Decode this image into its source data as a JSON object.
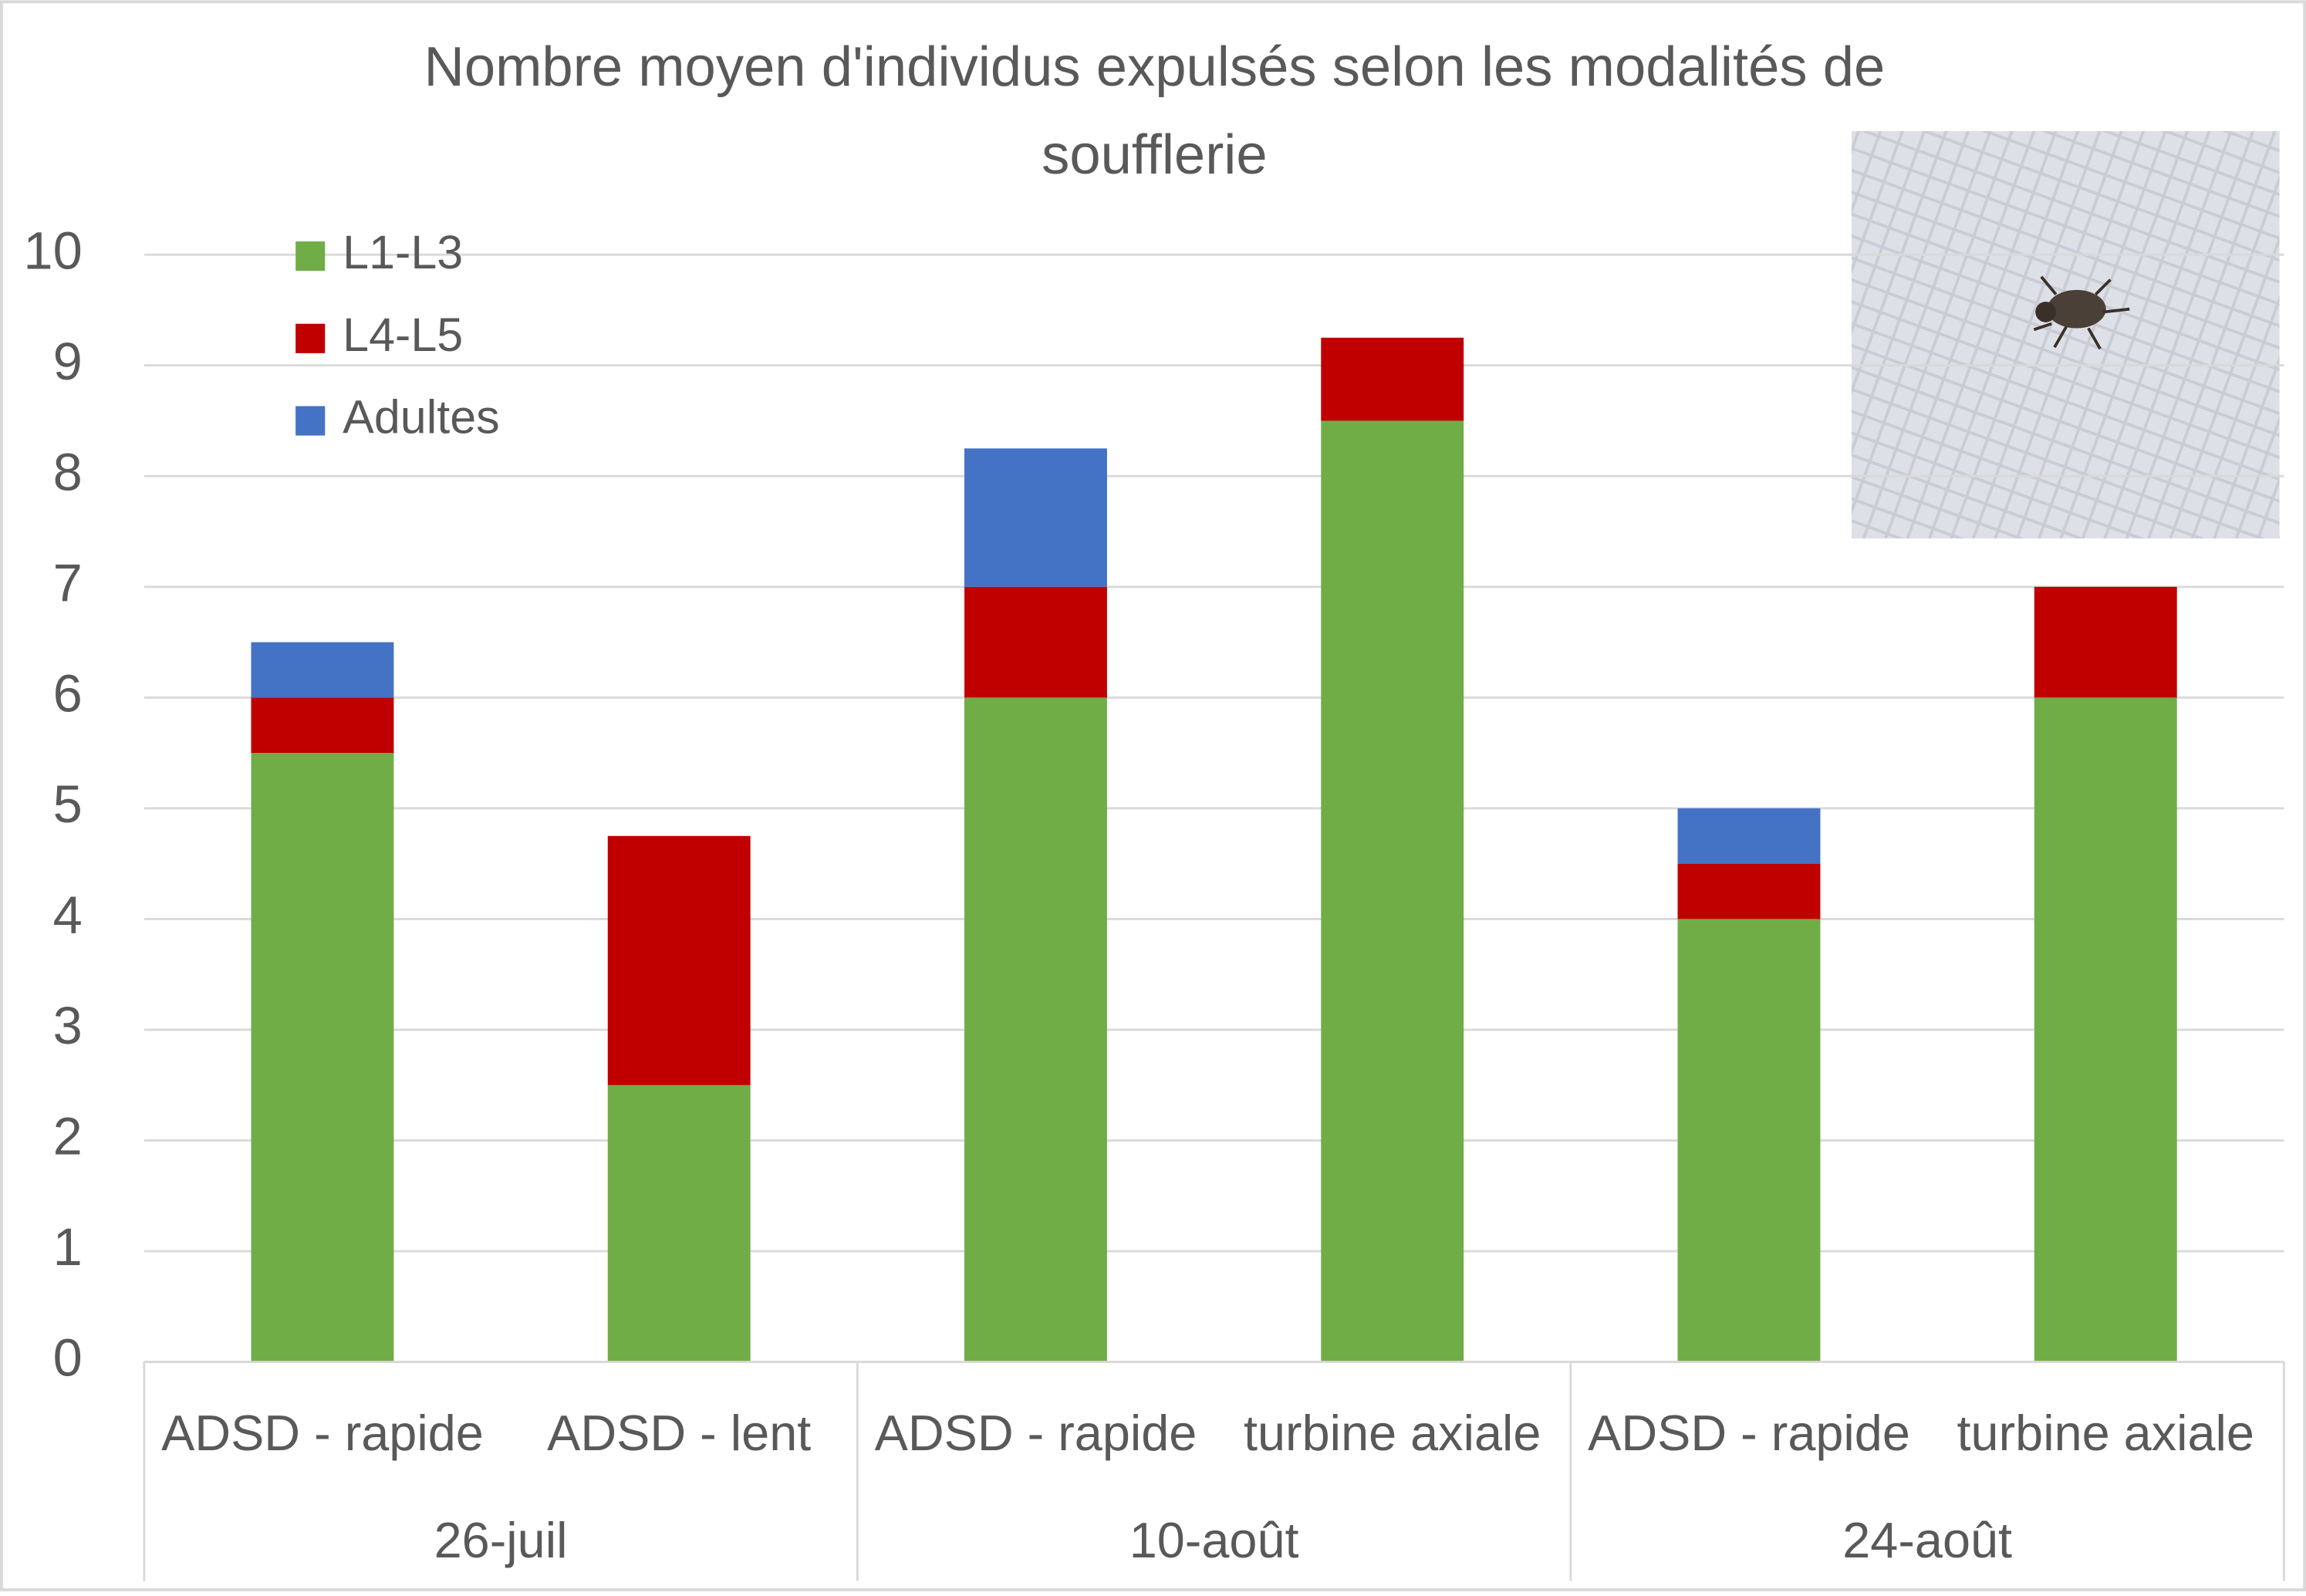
{
  "chart_data": {
    "type": "stacked_bar",
    "title": "Nombre moyen d'individus expulsés selon les modalités de soufflerie",
    "categories": [
      "ADSD - rapide",
      "ADSD - lent",
      "ADSD - rapide",
      "turbine axiale",
      "ADSD - rapide",
      "turbine axiale"
    ],
    "groups": [
      "26-juil",
      "10-août",
      "24-août"
    ],
    "series": [
      {
        "name": "L1-L3",
        "color": "#70ad47",
        "values": [
          5.5,
          2.5,
          6,
          8.5,
          4,
          6
        ]
      },
      {
        "name": "L4-L5",
        "color": "#c00000",
        "values": [
          0.5,
          2.25,
          1,
          0.75,
          0.5,
          1
        ]
      },
      {
        "name": "Adultes",
        "color": "#4472c4",
        "values": [
          0.5,
          0,
          1.25,
          0,
          0.5,
          0
        ]
      }
    ],
    "ylim": [
      0,
      10
    ],
    "yticks": [
      0,
      1,
      2,
      3,
      4,
      5,
      6,
      7,
      8,
      9,
      10
    ],
    "grid": true,
    "legend": "top-left"
  }
}
